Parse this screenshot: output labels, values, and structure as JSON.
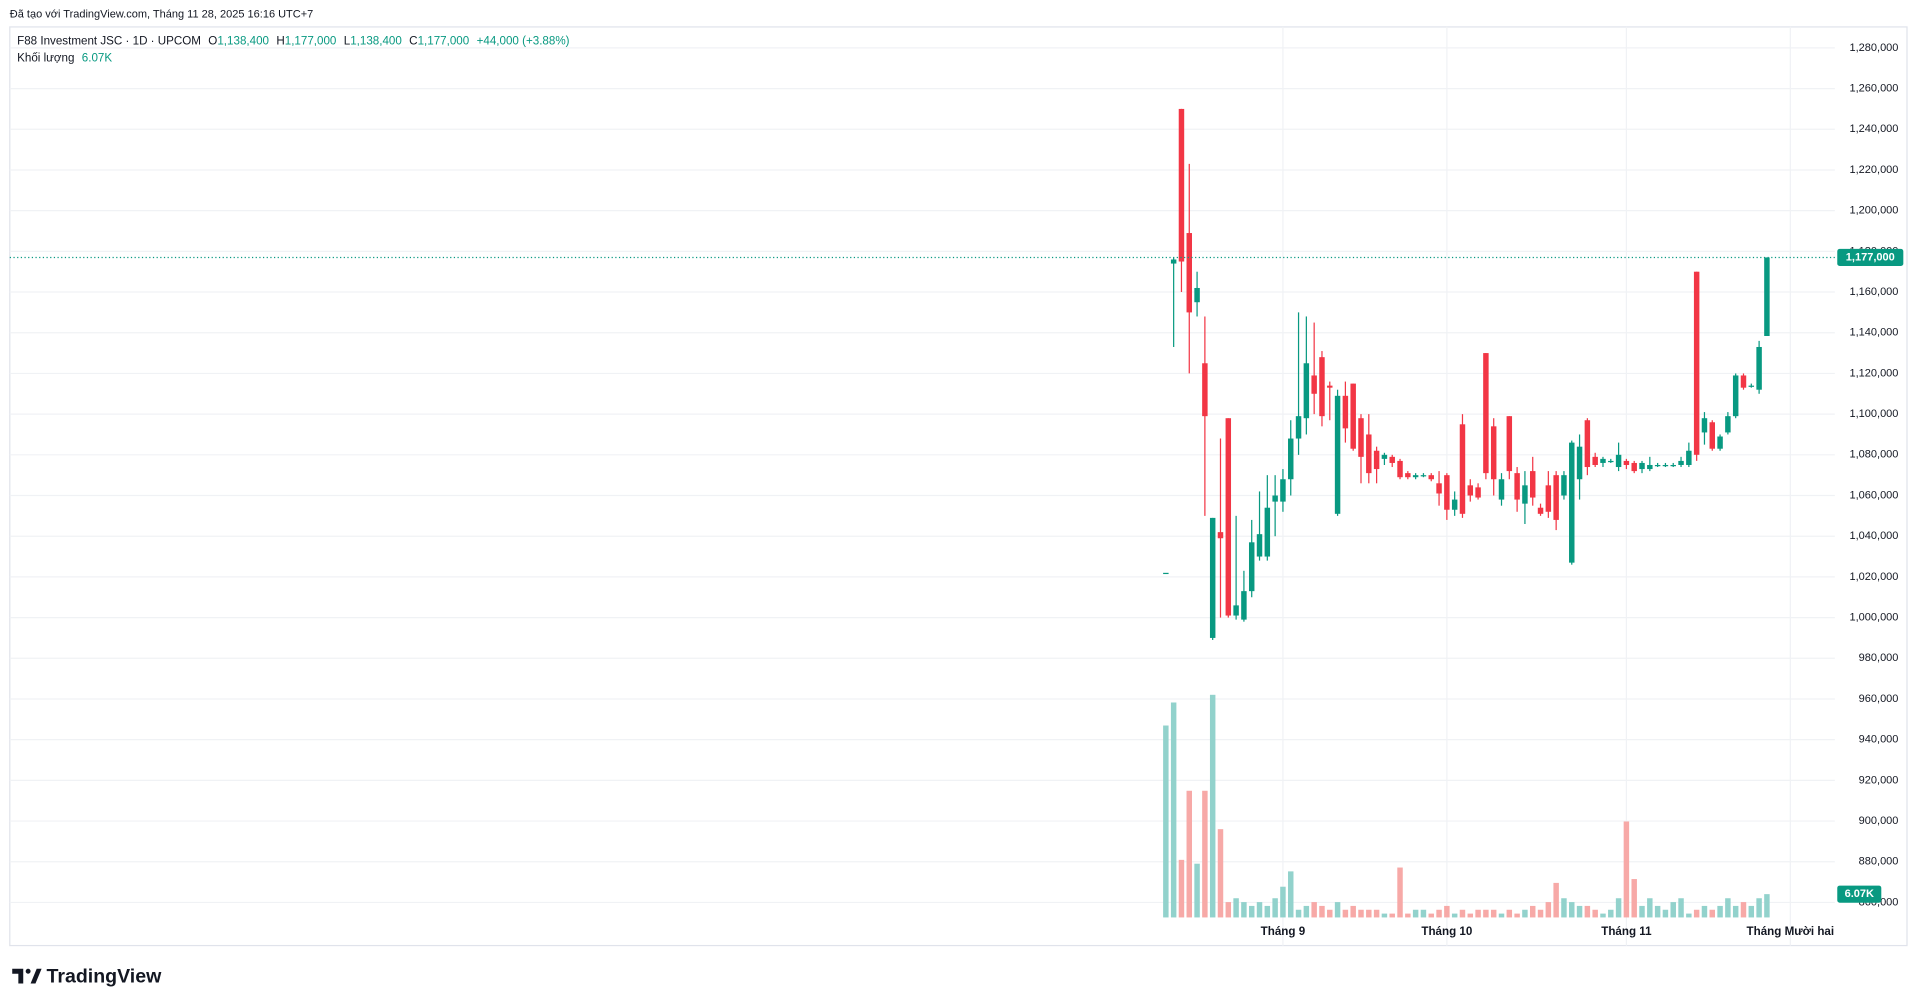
{
  "header": {
    "created": "Đã tạo với TradingView.com, Tháng 11 28, 2025 16:16 UTC+7",
    "brand": "TradingView"
  },
  "chart_data": {
    "type": "candlestick",
    "title": "F88 Investment JSC · 1D · UPCOM",
    "ohlc_legend": [
      {
        "key": "O",
        "label": "1,138,400"
      },
      {
        "key": "H",
        "label": "1,177,000"
      },
      {
        "key": "L",
        "label": "1,138,400"
      },
      {
        "key": "C",
        "label": "1,177,000"
      }
    ],
    "change": "+44,000 (+3.88%)",
    "volume_name": "Khối lượng",
    "volume_legend": "6.07K",
    "up_color": "#089981",
    "down_color": "#f23645",
    "volume_up_color": "#92d2cc",
    "volume_down_color": "#f7a9a7",
    "grid": true,
    "open": [
      1022000,
      1174000,
      1250000,
      1189000,
      1155000,
      1125000,
      990000,
      1042000,
      1098000,
      1001000,
      999000,
      1013000,
      1030000,
      1030000,
      1057000,
      1057000,
      1068000,
      1088000,
      1098000,
      1119000,
      1128000,
      1114000,
      1051000,
      1109000,
      1115000,
      1098000,
      1090000,
      1082000,
      1078000,
      1079000,
      1077000,
      1071000,
      1069000,
      1070000,
      1070000,
      1066000,
      1070000,
      1053000,
      1095000,
      1065000,
      1064000,
      1130000,
      1094000,
      1058000,
      1099000,
      1071000,
      1056000,
      1072000,
      1054000,
      1065000,
      1070000,
      1060000,
      1027000,
      1068000,
      1097000,
      1079000,
      1076000,
      1077000,
      1074000,
      1077000,
      1076000,
      1073000,
      1073000,
      1075000,
      1075000,
      1075000,
      1075000,
      1075000,
      1170000,
      1091000,
      1096000,
      1083000,
      1091000,
      1099000,
      1119000,
      1114000,
      1112000,
      1138400
    ],
    "high": [
      1022000,
      1177000,
      1250000,
      1223000,
      1170000,
      1148000,
      1049000,
      1088000,
      1098000,
      1050000,
      1023000,
      1048000,
      1062000,
      1070000,
      1070000,
      1073000,
      1097000,
      1150000,
      1148000,
      1145000,
      1131000,
      1116000,
      1112000,
      1116000,
      1115000,
      1100000,
      1100000,
      1084000,
      1081000,
      1080000,
      1078000,
      1072000,
      1071000,
      1071000,
      1071000,
      1072000,
      1071000,
      1062000,
      1100000,
      1068000,
      1066000,
      1130000,
      1098000,
      1071000,
      1099000,
      1074000,
      1072000,
      1079000,
      1056000,
      1072000,
      1072000,
      1072000,
      1087000,
      1090000,
      1098000,
      1081000,
      1079000,
      1078000,
      1086000,
      1078000,
      1077000,
      1077000,
      1079000,
      1076000,
      1076000,
      1076000,
      1079000,
      1086000,
      1170000,
      1101000,
      1097000,
      1090000,
      1101000,
      1120000,
      1120000,
      1115000,
      1136000,
      1177000
    ],
    "low": [
      1022000,
      1133000,
      1160000,
      1120000,
      1148000,
      1050000,
      989000,
      1000000,
      1000000,
      999000,
      998000,
      1010000,
      1028000,
      1028000,
      1040000,
      1052000,
      1060000,
      1080000,
      1090000,
      1100000,
      1094000,
      1097000,
      1050000,
      1086000,
      1082000,
      1066000,
      1066000,
      1066000,
      1075000,
      1074000,
      1068000,
      1068000,
      1068000,
      1069000,
      1067000,
      1055000,
      1048000,
      1050000,
      1049000,
      1057000,
      1058000,
      1068000,
      1060000,
      1055000,
      1068000,
      1052000,
      1046000,
      1055000,
      1050000,
      1049000,
      1043000,
      1058000,
      1026000,
      1058000,
      1070000,
      1074000,
      1074000,
      1076000,
      1072000,
      1073000,
      1071000,
      1071000,
      1072000,
      1074000,
      1074000,
      1074000,
      1074000,
      1074000,
      1077000,
      1085000,
      1082000,
      1082000,
      1090000,
      1098000,
      1112000,
      1113000,
      1110000,
      1138400
    ],
    "close": [
      1022000,
      1176000,
      1175000,
      1150000,
      1162000,
      1099000,
      1049000,
      1039000,
      1001000,
      1006000,
      1013000,
      1037000,
      1041000,
      1054000,
      1060000,
      1068000,
      1088000,
      1099000,
      1125000,
      1110000,
      1099000,
      1113000,
      1109000,
      1093000,
      1083000,
      1079000,
      1071000,
      1073000,
      1080000,
      1076000,
      1069000,
      1069000,
      1070000,
      1070000,
      1068000,
      1061000,
      1053000,
      1058000,
      1051000,
      1060000,
      1059000,
      1071000,
      1068000,
      1068000,
      1072000,
      1058000,
      1065000,
      1059000,
      1051000,
      1052000,
      1048000,
      1070000,
      1086000,
      1084000,
      1074000,
      1075000,
      1078000,
      1077000,
      1080000,
      1075000,
      1072000,
      1076000,
      1075000,
      1075000,
      1075000,
      1075000,
      1077000,
      1082000,
      1080000,
      1098000,
      1083000,
      1089000,
      1099000,
      1119000,
      1113000,
      1114000,
      1133000,
      1177000
    ],
    "volume": [
      50,
      56,
      15,
      33,
      14,
      33,
      58,
      23,
      4,
      5,
      4,
      3,
      4,
      3,
      5,
      8,
      12,
      2,
      3,
      4,
      3,
      2,
      4,
      2,
      3,
      2,
      2,
      2,
      1,
      1,
      13,
      1,
      2,
      2,
      1,
      2,
      3,
      1,
      2,
      1,
      2,
      2,
      2,
      1,
      2,
      1,
      2,
      3,
      2,
      4,
      9,
      5,
      4,
      3,
      3,
      2,
      1,
      2,
      5,
      25,
      10,
      3,
      5,
      3,
      2,
      4,
      5,
      1,
      2,
      3,
      2,
      3,
      5,
      3,
      4,
      3,
      5,
      6.07
    ],
    "xlim": [
      -148.1,
      85.7
    ],
    "xticks": [
      {
        "value": 15,
        "label": "Tháng 9"
      },
      {
        "value": 36,
        "label": "Tháng 10"
      },
      {
        "value": 59,
        "label": "Tháng 11"
      },
      {
        "value": 80,
        "label": "Tháng Mười hai"
      }
    ],
    "ylim": [
      838800,
      1290300
    ],
    "yticks": [
      {
        "value": 860000,
        "label": "860,000"
      },
      {
        "value": 880000,
        "label": "880,000"
      },
      {
        "value": 900000,
        "label": "900,000"
      },
      {
        "value": 920000,
        "label": "920,000"
      },
      {
        "value": 940000,
        "label": "940,000"
      },
      {
        "value": 960000,
        "label": "960,000"
      },
      {
        "value": 980000,
        "label": "980,000"
      },
      {
        "value": 1000000,
        "label": "1,000,000"
      },
      {
        "value": 1020000,
        "label": "1,020,000"
      },
      {
        "value": 1040000,
        "label": "1,040,000"
      },
      {
        "value": 1060000,
        "label": "1,060,000"
      },
      {
        "value": 1080000,
        "label": "1,080,000"
      },
      {
        "value": 1100000,
        "label": "1,100,000"
      },
      {
        "value": 1120000,
        "label": "1,120,000"
      },
      {
        "value": 1140000,
        "label": "1,140,000"
      },
      {
        "value": 1160000,
        "label": "1,160,000"
      },
      {
        "value": 1180000,
        "label": "1,180,000"
      },
      {
        "value": 1200000,
        "label": "1,200,000"
      },
      {
        "value": 1220000,
        "label": "1,220,000"
      },
      {
        "value": 1240000,
        "label": "1,240,000"
      },
      {
        "value": 1260000,
        "label": "1,260,000"
      },
      {
        "value": 1280000,
        "label": "1,280,000"
      }
    ],
    "volume_ylim": [
      0,
      58
    ],
    "last_price": {
      "value": 1177000,
      "label": "1,177,000"
    },
    "last_volume": {
      "value": 6.07,
      "label": "6.07K"
    }
  }
}
